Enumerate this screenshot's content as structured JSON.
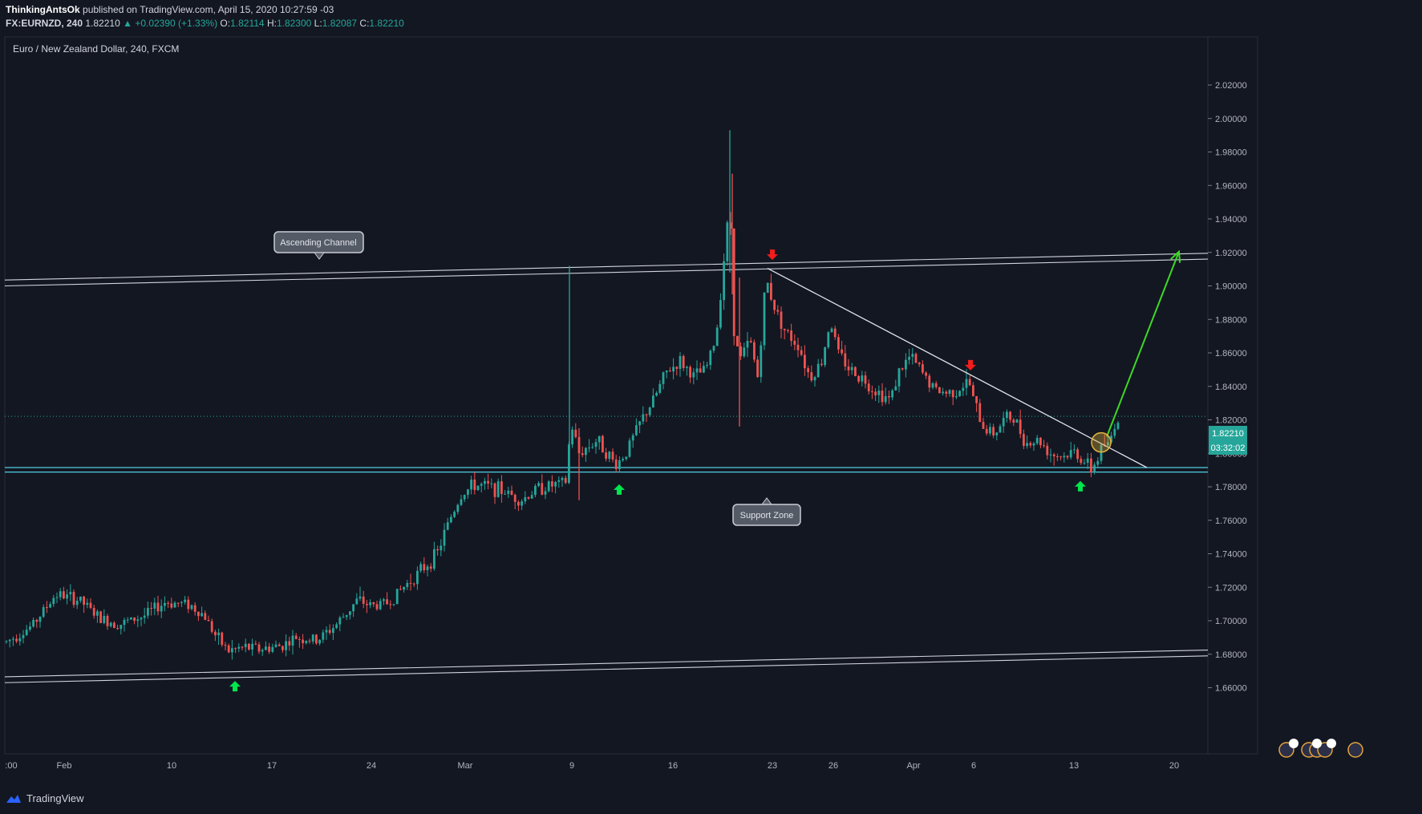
{
  "header": {
    "author": "ThinkingAntsOk",
    "published": "published on TradingView.com, April 15, 2020 10:27:59 -03",
    "symbol": "FX:EURNZD, 240",
    "last": "1.82210",
    "change": "▲ +0.02390 (+1.33%)",
    "o_label": "O:",
    "o": "1.82114",
    "h_label": "H:",
    "h": "1.82300",
    "l_label": "L:",
    "l": "1.82087",
    "c_label": "C:",
    "c": "1.82210"
  },
  "footer": {
    "brand": "TradingView"
  },
  "colors": {
    "background": "#131722",
    "up": "#26a69a",
    "down": "#ef5350",
    "support": "#4dd0e1",
    "channel": "#d1d4dc",
    "target_arrow": "#3ed926",
    "signal_up": "#00e64d",
    "signal_down": "#f21d1d"
  },
  "chart_data": {
    "type": "candlestick",
    "title": "Euro / New Zealand Dollar, 240, FXCM",
    "ylim": [
      1.645,
      2.03
    ],
    "yticks": [
      "2.02000",
      "2.00000",
      "1.98000",
      "1.96000",
      "1.94000",
      "1.92000",
      "1.90000",
      "1.88000",
      "1.86000",
      "1.84000",
      "1.82000",
      "1.80000",
      "1.78000",
      "1.76000",
      "1.74000",
      "1.72000",
      "1.70000",
      "1.68000",
      "1.66000"
    ],
    "xticks": [
      ":00",
      "Feb",
      "10",
      "17",
      "24",
      "Mar",
      "9",
      "16",
      "23",
      "26",
      "Apr",
      "6",
      "13",
      "20"
    ],
    "price_label": "1.82210",
    "countdown_label": "03:32:02",
    "price_path": [
      [
        0,
        1.685
      ],
      [
        40,
        1.697
      ],
      [
        70,
        1.716
      ],
      [
        100,
        1.712
      ],
      [
        125,
        1.701
      ],
      [
        150,
        1.698
      ],
      [
        180,
        1.703
      ],
      [
        205,
        1.711
      ],
      [
        235,
        1.71
      ],
      [
        255,
        1.703
      ],
      [
        270,
        1.69
      ],
      [
        285,
        1.682
      ],
      [
        305,
        1.684
      ],
      [
        325,
        1.683
      ],
      [
        350,
        1.685
      ],
      [
        370,
        1.69
      ],
      [
        395,
        1.688
      ],
      [
        420,
        1.698
      ],
      [
        445,
        1.712
      ],
      [
        465,
        1.709
      ],
      [
        485,
        1.711
      ],
      [
        505,
        1.721
      ],
      [
        525,
        1.73
      ],
      [
        545,
        1.74
      ],
      [
        560,
        1.76
      ],
      [
        575,
        1.775
      ],
      [
        590,
        1.781
      ],
      [
        610,
        1.78
      ],
      [
        630,
        1.777
      ],
      [
        650,
        1.772
      ],
      [
        670,
        1.779
      ],
      [
        690,
        1.781
      ],
      [
        705,
        1.782
      ],
      [
        712,
        1.818
      ],
      [
        722,
        1.8
      ],
      [
        745,
        1.808
      ],
      [
        768,
        1.793
      ],
      [
        780,
        1.8
      ],
      [
        800,
        1.82
      ],
      [
        815,
        1.832
      ],
      [
        830,
        1.848
      ],
      [
        848,
        1.855
      ],
      [
        865,
        1.846
      ],
      [
        880,
        1.85
      ],
      [
        893,
        1.87
      ],
      [
        903,
        1.918
      ],
      [
        910,
        1.95
      ],
      [
        915,
        1.875
      ],
      [
        922,
        1.855
      ],
      [
        935,
        1.868
      ],
      [
        945,
        1.845
      ],
      [
        955,
        1.905
      ],
      [
        965,
        1.888
      ],
      [
        980,
        1.872
      ],
      [
        995,
        1.865
      ],
      [
        1010,
        1.845
      ],
      [
        1025,
        1.855
      ],
      [
        1035,
        1.88
      ],
      [
        1045,
        1.86
      ],
      [
        1060,
        1.85
      ],
      [
        1075,
        1.845
      ],
      [
        1090,
        1.838
      ],
      [
        1110,
        1.832
      ],
      [
        1120,
        1.848
      ],
      [
        1135,
        1.858
      ],
      [
        1150,
        1.848
      ],
      [
        1165,
        1.838
      ],
      [
        1180,
        1.836
      ],
      [
        1195,
        1.838
      ],
      [
        1208,
        1.843
      ],
      [
        1215,
        1.83
      ],
      [
        1225,
        1.816
      ],
      [
        1240,
        1.812
      ],
      [
        1255,
        1.822
      ],
      [
        1265,
        1.82
      ],
      [
        1280,
        1.806
      ],
      [
        1295,
        1.808
      ],
      [
        1310,
        1.8
      ],
      [
        1325,
        1.798
      ],
      [
        1340,
        1.801
      ],
      [
        1352,
        1.795
      ],
      [
        1360,
        1.79
      ],
      [
        1368,
        1.796
      ],
      [
        1375,
        1.806
      ],
      [
        1382,
        1.804
      ],
      [
        1390,
        1.818
      ],
      [
        1398,
        1.822
      ]
    ],
    "spikes": [
      {
        "x": 910,
        "high": 1.993,
        "low": 1.908
      },
      {
        "x": 913,
        "high": 1.967,
        "low": 1.895
      },
      {
        "x": 922,
        "high": 1.905,
        "low": 1.816
      },
      {
        "x": 710,
        "high": 1.912,
        "low": 1.792
      },
      {
        "x": 722,
        "high": 1.815,
        "low": 1.772
      }
    ],
    "annotations": {
      "ascending_channel_label": "Ascending Channel",
      "support_zone_label": "Support Zone",
      "support_zone": [
        1.7888,
        1.7915
      ],
      "upper_channel": {
        "from": [
          0,
          1.9035
        ],
        "to": [
          1506,
          1.9195
        ]
      },
      "lower_channel": {
        "from": [
          0,
          1.6665
        ],
        "to": [
          1506,
          1.6825
        ]
      },
      "downtrend_line": {
        "from": [
          957,
          1.9105
        ],
        "to": [
          1430,
          1.7915
        ]
      },
      "breakout_circle": {
        "x": 1373,
        "y": 1.8065
      },
      "target_arrow": {
        "from": [
          1380,
          1.81
        ],
        "to": [
          1470,
          1.9205
        ]
      },
      "up_markers": [
        [
          293,
          1.664
        ],
        [
          772,
          1.7815
        ],
        [
          1347,
          1.7835
        ]
      ],
      "down_markers": [
        [
          963,
          1.9155
        ],
        [
          1210,
          1.8495
        ]
      ]
    }
  }
}
